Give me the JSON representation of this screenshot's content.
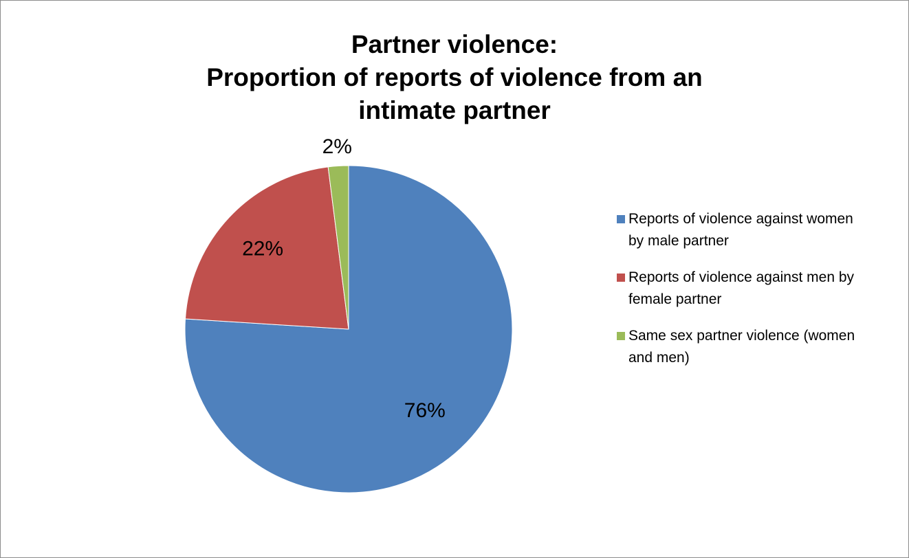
{
  "chart_data": {
    "type": "pie",
    "title_lines": [
      "Partner violence:",
      "Proportion of reports of violence from an",
      "intimate partner"
    ],
    "slices": [
      {
        "label": "Reports of violence against women by male partner",
        "value": 76,
        "data_label": "76%",
        "color": "#4F81BD"
      },
      {
        "label": "Reports of violence against men by female partner",
        "value": 22,
        "data_label": "22%",
        "color": "#C0504D"
      },
      {
        "label": "Same sex partner violence (women and men)",
        "value": 2,
        "data_label": "2%",
        "color": "#9BBB59"
      }
    ],
    "legend_lines": [
      [
        "Reports of violence against women",
        "by male partner"
      ],
      [
        "Reports of violence against men by",
        "female partner"
      ],
      [
        "Same sex partner violence (women",
        "and men)"
      ]
    ],
    "legend_position": "right",
    "start_angle": "top, clockwise"
  }
}
